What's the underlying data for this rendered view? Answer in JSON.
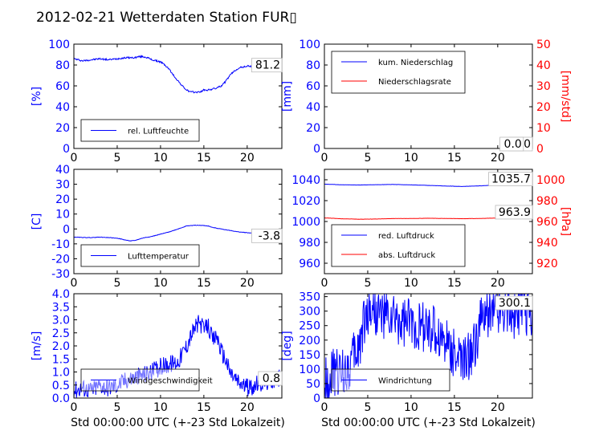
{
  "figure": {
    "title": "2012-02-21 Wetterdaten Station FUR▯",
    "colors": {
      "primary": "#0000ff",
      "secondary": "#ff0000",
      "axis": "#000000",
      "legend_border": "#000000"
    }
  },
  "chart_data": [
    {
      "id": "humidity",
      "type": "line",
      "x_ticks": [
        0,
        5,
        10,
        15,
        20
      ],
      "xlim": [
        0,
        24
      ],
      "ylim": [
        0,
        100
      ],
      "y_ticks": [
        0,
        20,
        40,
        60,
        80,
        100
      ],
      "ylabel": "[%]",
      "current_value": "81.2",
      "legend": [
        {
          "name": "rel. Luftfeuchte",
          "color": "#0000ff"
        }
      ],
      "legend_position": "lower-left",
      "series": [
        {
          "name": "rel. Luftfeuchte",
          "color": "#0000ff",
          "axis": "left",
          "noise": 0.8,
          "x": [
            0,
            0.5,
            1,
            2,
            3,
            4,
            5,
            6,
            7,
            7.5,
            8,
            8.5,
            9,
            9.5,
            10,
            10.5,
            11,
            11.5,
            12,
            12.5,
            13,
            13.5,
            14,
            14.5,
            15,
            15.5,
            16,
            16.5,
            17,
            17.5,
            18,
            18.5,
            19,
            20,
            21,
            22,
            23,
            23.5,
            24
          ],
          "y": [
            86,
            85,
            84,
            85,
            86,
            85,
            86,
            87,
            87,
            88,
            88,
            87,
            85,
            84,
            83,
            80,
            76,
            70,
            65,
            60,
            56,
            54,
            54,
            54,
            56,
            56,
            57,
            58,
            60,
            64,
            70,
            74,
            77,
            79,
            78,
            78,
            80,
            79,
            81
          ]
        }
      ]
    },
    {
      "id": "precipitation",
      "type": "line",
      "x_ticks": [
        0,
        5,
        10,
        15,
        20
      ],
      "xlim": [
        0,
        24
      ],
      "ylim": [
        0,
        100
      ],
      "y_ticks": [
        0,
        20,
        40,
        60,
        80,
        100
      ],
      "ylabel": "[mm]",
      "y2lim": [
        0,
        50
      ],
      "y2_ticks": [
        0,
        10,
        20,
        30,
        40,
        50
      ],
      "y2label": "[mm/std]",
      "current_value": "0.0",
      "current_value_2": "0.0",
      "legend": [
        {
          "name": "kum. Niederschlag",
          "color": "#0000ff"
        },
        {
          "name": "Niederschlagsrate",
          "color": "#ff0000"
        }
      ],
      "legend_position": "upper-left",
      "series": [
        {
          "name": "kum. Niederschlag",
          "color": "#0000ff",
          "axis": "left",
          "noise": 0,
          "x": [
            0,
            24
          ],
          "y": [
            0,
            0
          ]
        },
        {
          "name": "Niederschlagsrate",
          "color": "#ff0000",
          "axis": "right",
          "noise": 0,
          "x": [
            0,
            24
          ],
          "y": [
            0,
            0
          ]
        }
      ]
    },
    {
      "id": "temperature",
      "type": "line",
      "x_ticks": [
        0,
        5,
        10,
        15,
        20
      ],
      "xlim": [
        0,
        24
      ],
      "ylim": [
        -30,
        40
      ],
      "y_ticks": [
        -30,
        -20,
        -10,
        0,
        10,
        20,
        30,
        40
      ],
      "ylabel": "[C]",
      "current_value": "-3.8",
      "legend": [
        {
          "name": "Lufttemperatur",
          "color": "#0000ff"
        }
      ],
      "legend_position": "lower-left",
      "series": [
        {
          "name": "Lufttemperatur",
          "color": "#0000ff",
          "axis": "left",
          "noise": 0.15,
          "x": [
            0,
            1,
            2,
            3,
            4,
            5,
            6,
            6.5,
            7,
            8,
            9,
            10,
            11,
            12,
            13,
            14,
            15,
            15.5,
            16,
            17,
            18,
            19,
            20,
            21,
            22,
            23,
            24
          ],
          "y": [
            -5.5,
            -5.7,
            -5.8,
            -5.5,
            -5.8,
            -6.2,
            -7.5,
            -8,
            -7.8,
            -6,
            -5,
            -3.5,
            -2,
            0,
            2,
            2.5,
            2.3,
            2,
            1,
            0,
            -1,
            -2,
            -2.5,
            -3,
            -3.2,
            -3.5,
            -3.8
          ]
        }
      ]
    },
    {
      "id": "pressure",
      "type": "line",
      "x_ticks": [
        0,
        5,
        10,
        15,
        20
      ],
      "xlim": [
        0,
        24
      ],
      "ylim": [
        950,
        1050
      ],
      "y_ticks": [
        960,
        980,
        1000,
        1020,
        1040
      ],
      "ylabel": "",
      "y2lim": [
        910,
        1010
      ],
      "y2_ticks": [
        920,
        940,
        960,
        980,
        1000
      ],
      "y2label": "[hPa]",
      "current_value": "1035.7",
      "current_value_2": "963.9",
      "legend": [
        {
          "name": "red. Luftdruck",
          "color": "#0000ff"
        },
        {
          "name": "abs. Luftdruck",
          "color": "#ff0000"
        }
      ],
      "legend_position": "lower-left",
      "series": [
        {
          "name": "red. Luftdruck",
          "color": "#0000ff",
          "axis": "left",
          "noise": 0.1,
          "x": [
            0,
            2,
            4,
            6,
            8,
            10,
            12,
            14,
            16,
            18,
            20,
            22,
            24
          ],
          "y": [
            1035.8,
            1035.2,
            1035,
            1035.3,
            1035.5,
            1035.1,
            1034.6,
            1034,
            1033.6,
            1034.2,
            1035,
            1035.5,
            1035.7
          ]
        },
        {
          "name": "abs. Luftdruck",
          "color": "#ff0000",
          "axis": "right",
          "noise": 0.1,
          "x": [
            0,
            2,
            4,
            6,
            8,
            10,
            12,
            14,
            16,
            18,
            20,
            22,
            24
          ],
          "y": [
            963.5,
            962.6,
            962.2,
            962.4,
            962.8,
            962.9,
            963.1,
            962.9,
            962.7,
            962.9,
            963.3,
            963.7,
            963.9
          ]
        }
      ]
    },
    {
      "id": "wind_speed",
      "type": "line",
      "x_ticks": [
        0,
        5,
        10,
        15,
        20
      ],
      "xlim": [
        0,
        24
      ],
      "ylim": [
        0,
        4
      ],
      "y_ticks": [
        "0.0",
        "0.5",
        "1.0",
        "1.5",
        "2.0",
        "2.5",
        "3.0",
        "3.5",
        "4.0"
      ],
      "ylabel": "[m/s]",
      "xlabel": "Std 00:00:00 UTC (+-23 Std Lokalzeit)",
      "current_value": "0.8",
      "legend": [
        {
          "name": "Windgeschwindigkeit",
          "color": "#0000ff"
        }
      ],
      "legend_position": "lower-left",
      "series": [
        {
          "name": "Windgeschwindigkeit",
          "color": "#0000ff",
          "axis": "left",
          "noise": 0.35,
          "x": [
            0,
            1,
            2,
            3,
            4,
            5,
            6,
            7,
            8,
            9,
            10,
            11,
            12,
            13,
            13.5,
            14,
            14.5,
            15,
            15.5,
            16,
            16.5,
            17,
            17.5,
            18,
            19,
            20,
            21,
            22,
            23,
            24
          ],
          "y": [
            0.3,
            0.4,
            0.3,
            0.5,
            0.4,
            0.5,
            0.7,
            0.8,
            0.9,
            1.0,
            1.2,
            1.3,
            1.4,
            2.0,
            2.4,
            2.7,
            2.9,
            2.6,
            2.8,
            2.2,
            2.4,
            1.8,
            1.5,
            1.0,
            0.6,
            0.4,
            0.5,
            0.6,
            0.7,
            0.8
          ]
        }
      ]
    },
    {
      "id": "wind_direction",
      "type": "line",
      "x_ticks": [
        0,
        5,
        10,
        15,
        20
      ],
      "xlim": [
        0,
        24
      ],
      "ylim": [
        0,
        360
      ],
      "y_ticks": [
        0,
        50,
        100,
        150,
        200,
        250,
        300,
        350
      ],
      "ylabel": "[deg]",
      "xlabel": "Std 00:00:00 UTC (+-23 Std Lokalzeit)",
      "current_value": "300.1",
      "legend": [
        {
          "name": "Windrichtung",
          "color": "#0000ff"
        }
      ],
      "legend_position": "lower-left",
      "series": [
        {
          "name": "Windrichtung",
          "color": "#0000ff",
          "axis": "left",
          "noise": 90,
          "x": [
            0,
            1,
            2,
            3,
            4,
            4.5,
            5,
            5.5,
            6,
            7,
            8,
            9,
            10,
            11,
            12,
            13,
            14,
            15,
            16,
            17,
            18,
            19,
            20,
            21,
            22,
            23,
            24
          ],
          "y": [
            60,
            80,
            90,
            120,
            180,
            260,
            300,
            320,
            300,
            280,
            270,
            260,
            260,
            250,
            240,
            220,
            200,
            160,
            120,
            150,
            260,
            300,
            310,
            320,
            290,
            300,
            300
          ]
        }
      ]
    }
  ]
}
